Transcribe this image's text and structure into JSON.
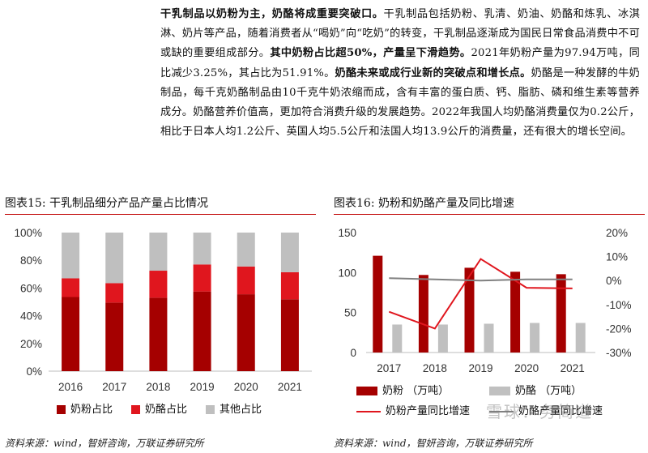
{
  "article": {
    "s1_bold": "干乳制品以奶粉为主，奶酪将成重要突破口。",
    "s2": "干乳制品包括奶粉、乳清、奶油、奶酪和炼乳、冰淇淋、奶片等产品，随着消费者从“喝奶”向“吃奶”的转变，干乳制品逐渐成为国民日常食品消费中不可或缺的重要组成部分。",
    "s3_bold": "其中奶粉占比超50%，产量呈下滑趋势。",
    "s4": "2021年奶粉产量为97.94万吨，同比减少3.25%，其占比为51.91%。",
    "s5_bold": "奶酪未来或成行业新的突破点和增长点。",
    "s6": "奶酪是一种发酵的牛奶制品，每千克奶酪制品由10千克牛奶浓缩而成，含有丰富的蛋白质、钙、脂肪、磷和维生素等营养成分。奶酪营养价值高，更加符合消费升级的发展趋势。2022年我国人均奶酪消费量仅为0.2公斤，相比于日本人均1.2公斤、英国人均5.5公斤和法国人均13.9公斤的消费量，还有很大的增长空间。"
  },
  "figure15": {
    "title": "图表15:  干乳制品细分产品产量占比情况",
    "source": "资料来源：wind，智妍咨询，万联证券研究所"
  },
  "figure16": {
    "title": "图表16:  奶粉和奶酪产量及同比增速",
    "source": "资料来源：wind，智妍咨询，万联证券研究所"
  },
  "watermark": "雪球：务简道",
  "colors": {
    "milk_powder": "#a50000",
    "cheese": "#e0161e",
    "other": "#bfbfbf",
    "cheese_bar": "#c0c0c0",
    "cheese_line": "#808080"
  },
  "chart_data": [
    {
      "type": "bar",
      "stacked": true,
      "categories": [
        "2016",
        "2017",
        "2018",
        "2019",
        "2020",
        "2021"
      ],
      "series": [
        {
          "name": "奶粉占比",
          "values": [
            53.5,
            49.5,
            53,
            57.5,
            55.5,
            51.9
          ]
        },
        {
          "name": "奶酪占比",
          "values": [
            13.5,
            14,
            19.5,
            19.5,
            20,
            19.5
          ]
        },
        {
          "name": "其他占比",
          "values": [
            33,
            36.5,
            27.5,
            23,
            24.5,
            28.6
          ]
        }
      ],
      "yticks": [
        "0%",
        "20%",
        "40%",
        "60%",
        "80%",
        "100%"
      ],
      "ylim": [
        0,
        100
      ],
      "legend": "bottom"
    },
    {
      "type": "bar+line",
      "categories": [
        "2017",
        "2018",
        "2019",
        "2020",
        "2021"
      ],
      "series": [
        {
          "name": "奶粉 （万吨）",
          "type": "bar",
          "axis": "left",
          "values": [
            121,
            97,
            106,
            101,
            97.94
          ]
        },
        {
          "name": "奶酪 （万吨）",
          "type": "bar",
          "axis": "left",
          "values": [
            35,
            35,
            36,
            37,
            37
          ]
        },
        {
          "name": "奶粉产量同比增速",
          "type": "line",
          "axis": "right",
          "values": [
            -13,
            -20,
            9,
            -3,
            -3.25
          ]
        },
        {
          "name": "奶酪产量同比增速",
          "type": "line",
          "axis": "right",
          "values": [
            1,
            0.5,
            0,
            0.5,
            0.5
          ]
        }
      ],
      "yticks_left": [
        "0",
        "50",
        "100",
        "150"
      ],
      "ylim_left": [
        0,
        150
      ],
      "yticks_right": [
        "-30%",
        "-20%",
        "-10%",
        "0%",
        "10%",
        "20%"
      ],
      "ylim_right": [
        -30,
        20
      ],
      "legend": "bottom"
    }
  ]
}
